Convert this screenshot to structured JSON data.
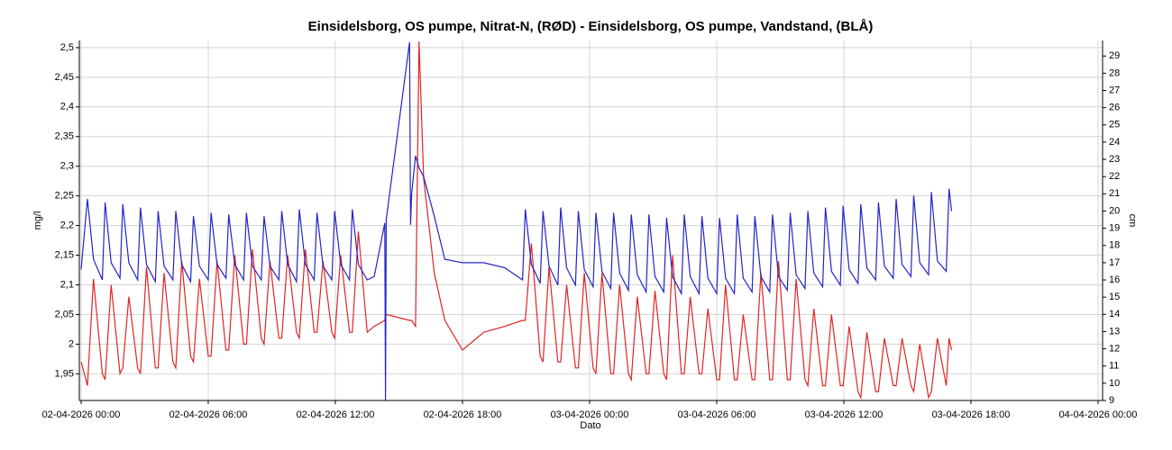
{
  "chart_data": {
    "type": "line",
    "title": "Einsidelsborg, OS pumpe, Nitrat-N, (RØD)  -  Einsidelsborg, OS pumpe, Vandstand, (BLÅ)",
    "xlabel": "Dato",
    "ylabel": "mg/l",
    "y2label": "cm",
    "xlim": [
      "02-04-2026 00:00",
      "04-04-2026 00:00"
    ],
    "xticks": [
      "02-04-2026 00:00",
      "02-04-2026 06:00",
      "02-04-2026 12:00",
      "02-04-2026 18:00",
      "03-04-2026 00:00",
      "03-04-2026 06:00",
      "03-04-2026 12:00",
      "03-04-2026 18:00",
      "04-04-2026 00:00"
    ],
    "ylim": [
      1.905,
      2.512
    ],
    "yticks": [
      {
        "value": 1.95,
        "label": "1,95"
      },
      2,
      {
        "value": 2.05,
        "label": "2,05"
      },
      {
        "value": 2.1,
        "label": "2,1"
      },
      {
        "value": 2.15,
        "label": "2,15"
      },
      {
        "value": 2.2,
        "label": "2,2"
      },
      {
        "value": 2.25,
        "label": "2,25"
      },
      {
        "value": 2.3,
        "label": "2,3"
      },
      {
        "value": 2.35,
        "label": "2,35"
      },
      {
        "value": 2.4,
        "label": "2,4"
      },
      {
        "value": 2.45,
        "label": "2,45"
      },
      {
        "value": 2.5,
        "label": "2,5"
      }
    ],
    "y2lim": [
      9,
      29.9
    ],
    "y2ticks": [
      9,
      10,
      11,
      12,
      13,
      14,
      15,
      16,
      17,
      18,
      19,
      20,
      21,
      22,
      23,
      24,
      25,
      26,
      27,
      28,
      29
    ],
    "grid": true,
    "x": [
      "02-04-2026 00:00",
      "02-04-2026 00:18",
      "02-04-2026 00:35",
      "02-04-2026 01:00",
      "02-04-2026 01:08",
      "02-04-2026 01:25",
      "02-04-2026 01:50",
      "02-04-2026 01:58",
      "02-04-2026 02:15",
      "02-04-2026 02:40",
      "02-04-2026 02:48",
      "02-04-2026 03:05",
      "02-04-2026 03:30",
      "02-04-2026 03:38",
      "02-04-2026 03:55",
      "02-04-2026 04:20",
      "02-04-2026 04:28",
      "02-04-2026 04:45",
      "02-04-2026 05:10",
      "02-04-2026 05:18",
      "02-04-2026 05:35",
      "02-04-2026 06:00",
      "02-04-2026 06:08",
      "02-04-2026 06:25",
      "02-04-2026 06:50",
      "02-04-2026 06:58",
      "02-04-2026 07:15",
      "02-04-2026 07:40",
      "02-04-2026 07:48",
      "02-04-2026 08:05",
      "02-04-2026 08:30",
      "02-04-2026 08:38",
      "02-04-2026 08:55",
      "02-04-2026 09:20",
      "02-04-2026 09:28",
      "02-04-2026 09:45",
      "02-04-2026 10:10",
      "02-04-2026 10:18",
      "02-04-2026 10:35",
      "02-04-2026 11:00",
      "02-04-2026 11:08",
      "02-04-2026 11:25",
      "02-04-2026 11:50",
      "02-04-2026 11:58",
      "02-04-2026 12:15",
      "02-04-2026 12:40",
      "02-04-2026 12:48",
      "02-04-2026 13:05",
      "02-04-2026 13:30",
      "02-04-2026 13:50",
      "02-04-2026 14:20",
      "02-04-2026 14:22",
      "02-04-2026 14:24",
      "02-04-2026 15:30",
      "02-04-2026 15:33",
      "02-04-2026 15:36",
      "02-04-2026 15:47",
      "02-04-2026 15:57",
      "02-04-2026 16:10",
      "02-04-2026 16:40",
      "02-04-2026 17:10",
      "02-04-2026 18:00",
      "02-04-2026 19:00",
      "02-04-2026 20:00",
      "02-04-2026 20:50",
      "02-04-2026 20:58",
      "02-04-2026 21:15",
      "02-04-2026 21:40",
      "02-04-2026 21:48",
      "02-04-2026 22:05",
      "02-04-2026 22:30",
      "02-04-2026 22:38",
      "02-04-2026 22:55",
      "02-04-2026 23:20",
      "02-04-2026 23:28",
      "02-04-2026 23:45",
      "03-04-2026 00:10",
      "03-04-2026 00:18",
      "03-04-2026 00:35",
      "03-04-2026 01:00",
      "03-04-2026 01:08",
      "03-04-2026 01:25",
      "03-04-2026 01:50",
      "03-04-2026 01:58",
      "03-04-2026 02:15",
      "03-04-2026 02:40",
      "03-04-2026 02:48",
      "03-04-2026 03:05",
      "03-04-2026 03:30",
      "03-04-2026 03:38",
      "03-04-2026 03:55",
      "03-04-2026 04:20",
      "03-04-2026 04:28",
      "03-04-2026 04:45",
      "03-04-2026 05:10",
      "03-04-2026 05:18",
      "03-04-2026 05:35",
      "03-04-2026 06:00",
      "03-04-2026 06:08",
      "03-04-2026 06:25",
      "03-04-2026 06:50",
      "03-04-2026 06:58",
      "03-04-2026 07:15",
      "03-04-2026 07:40",
      "03-04-2026 07:48",
      "03-04-2026 08:05",
      "03-04-2026 08:30",
      "03-04-2026 08:38",
      "03-04-2026 08:55",
      "03-04-2026 09:20",
      "03-04-2026 09:28",
      "03-04-2026 09:45",
      "03-04-2026 10:10",
      "03-04-2026 10:18",
      "03-04-2026 10:35",
      "03-04-2026 11:00",
      "03-04-2026 11:08",
      "03-04-2026 11:25",
      "03-04-2026 11:50",
      "03-04-2026 11:58",
      "03-04-2026 12:15",
      "03-04-2026 12:40",
      "03-04-2026 12:48",
      "03-04-2026 13:05",
      "03-04-2026 13:30",
      "03-04-2026 13:38",
      "03-04-2026 13:55",
      "03-04-2026 14:20",
      "03-04-2026 14:28",
      "03-04-2026 14:45",
      "03-04-2026 15:10",
      "03-04-2026 15:18",
      "03-04-2026 15:35",
      "03-04-2026 16:00",
      "03-04-2026 16:08",
      "03-04-2026 16:25",
      "03-04-2026 16:50",
      "03-04-2026 16:58",
      "03-04-2026 17:05"
    ],
    "series": [
      {
        "name": "Nitrat-N",
        "color": "#e02424",
        "axis": "y",
        "values": [
          1.97,
          1.93,
          2.11,
          1.95,
          1.94,
          2.1,
          1.95,
          1.96,
          2.08,
          1.96,
          1.95,
          2.13,
          1.96,
          1.96,
          2.12,
          1.97,
          1.96,
          2.14,
          1.98,
          1.97,
          2.11,
          1.98,
          1.98,
          2.14,
          1.99,
          1.99,
          2.15,
          2.0,
          2.0,
          2.16,
          2.01,
          2.0,
          2.14,
          2.01,
          2.01,
          2.15,
          2.02,
          2.01,
          2.16,
          2.02,
          2.02,
          2.14,
          2.02,
          2.01,
          2.15,
          2.02,
          2.02,
          2.19,
          2.02,
          2.03,
          2.04,
          2.05,
          2.05,
          2.04,
          2.04,
          2.04,
          2.03,
          2.51,
          2.28,
          2.12,
          2.04,
          1.99,
          2.02,
          2.03,
          2.04,
          2.04,
          2.17,
          1.98,
          1.97,
          2.13,
          1.97,
          1.97,
          2.1,
          1.96,
          1.96,
          2.12,
          1.96,
          1.95,
          2.12,
          1.95,
          1.95,
          2.1,
          1.95,
          1.94,
          2.08,
          1.95,
          1.95,
          2.09,
          1.95,
          1.94,
          2.15,
          1.95,
          1.95,
          2.08,
          1.95,
          1.95,
          2.06,
          1.94,
          1.94,
          2.1,
          1.94,
          1.94,
          2.05,
          1.94,
          1.94,
          2.12,
          1.94,
          1.94,
          2.14,
          1.94,
          1.94,
          2.11,
          1.94,
          1.93,
          2.06,
          1.93,
          1.93,
          2.05,
          1.93,
          1.93,
          2.03,
          1.92,
          1.91,
          2.02,
          1.92,
          1.92,
          2.01,
          1.93,
          1.93,
          2.01,
          1.93,
          1.92,
          2.0,
          1.91,
          1.92,
          2.01,
          1.93,
          2.01,
          1.99
        ]
      },
      {
        "name": "Vandstand",
        "color": "#2424c8",
        "axis": "y2",
        "values": [
          16.6,
          20.7,
          17.2,
          16.0,
          20.5,
          17.0,
          16.1,
          20.4,
          17.0,
          16.0,
          20.2,
          16.9,
          15.9,
          20.0,
          16.8,
          16.0,
          20.0,
          16.9,
          15.9,
          19.7,
          16.8,
          16.0,
          19.9,
          16.9,
          16.1,
          19.8,
          16.9,
          16.0,
          19.9,
          16.8,
          16.0,
          19.7,
          16.8,
          16.0,
          20.0,
          16.9,
          15.9,
          20.1,
          16.9,
          16.0,
          19.9,
          16.8,
          16.0,
          20.0,
          16.9,
          16.0,
          20.1,
          16.9,
          16.0,
          16.2,
          19.3,
          9,
          19.5,
          29.8,
          19.2,
          21.0,
          23.2,
          22.5,
          22.0,
          19.7,
          17.2,
          17.0,
          17.0,
          16.7,
          16.0,
          20.1,
          16.9,
          15.8,
          20.0,
          16.8,
          15.7,
          20.2,
          16.7,
          15.7,
          20.0,
          16.6,
          15.6,
          19.9,
          16.5,
          15.5,
          19.9,
          16.4,
          15.4,
          19.8,
          16.3,
          15.3,
          19.8,
          16.2,
          15.3,
          19.6,
          16.2,
          15.2,
          19.8,
          16.2,
          15.2,
          19.7,
          16.1,
          15.2,
          19.6,
          16.1,
          15.2,
          19.8,
          16.1,
          15.3,
          19.7,
          16.2,
          15.3,
          19.8,
          16.2,
          15.4,
          19.9,
          16.3,
          15.5,
          20.0,
          16.4,
          15.6,
          20.2,
          16.5,
          15.7,
          20.3,
          16.6,
          15.8,
          20.4,
          16.7,
          16.0,
          20.5,
          16.8,
          16.1,
          20.7,
          16.9,
          16.2,
          20.9,
          17.0,
          16.3,
          21.1,
          17.1,
          16.5,
          21.3,
          20.0
        ]
      }
    ]
  }
}
